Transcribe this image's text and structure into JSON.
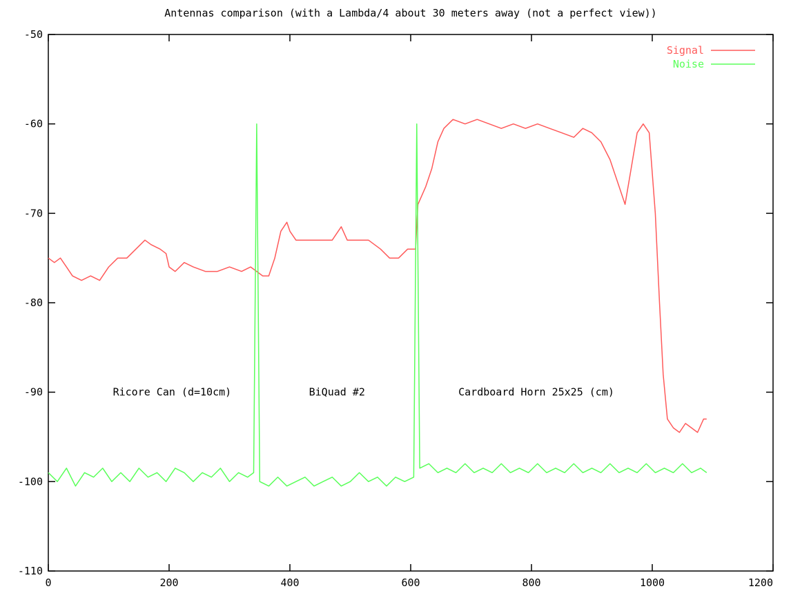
{
  "chart_data": {
    "type": "line",
    "title": "Antennas comparison (with a Lambda/4 about 30 meters away (not a perfect view))",
    "xlabel": "",
    "ylabel": "",
    "xlim": [
      0,
      1200
    ],
    "ylim": [
      -110,
      -50
    ],
    "x_ticks": [
      0,
      200,
      400,
      600,
      800,
      1000,
      1200
    ],
    "y_ticks": [
      -50,
      -60,
      -70,
      -80,
      -90,
      -100,
      -110
    ],
    "grid": false,
    "legend_position": "top-right",
    "colors": {
      "signal": "#ff5a5a",
      "noise": "#5aff5a",
      "axis": "#000000"
    },
    "annotations": [
      {
        "text": "Ricore Can (d=10cm)",
        "x": 205,
        "y": -90
      },
      {
        "text": "BiQuad #2",
        "x": 478,
        "y": -90
      },
      {
        "text": "Cardboard Horn 25x25 (cm)",
        "x": 808,
        "y": -90
      }
    ],
    "series": [
      {
        "name": "Signal",
        "color": "#ff5a5a",
        "points": [
          [
            0,
            -75
          ],
          [
            10,
            -75.5
          ],
          [
            20,
            -75
          ],
          [
            30,
            -76
          ],
          [
            40,
            -77
          ],
          [
            55,
            -77.5
          ],
          [
            70,
            -77
          ],
          [
            85,
            -77.5
          ],
          [
            100,
            -76
          ],
          [
            115,
            -75
          ],
          [
            130,
            -75
          ],
          [
            145,
            -74
          ],
          [
            160,
            -73
          ],
          [
            170,
            -73.5
          ],
          [
            185,
            -74
          ],
          [
            195,
            -74.5
          ],
          [
            200,
            -76
          ],
          [
            210,
            -76.5
          ],
          [
            225,
            -75.5
          ],
          [
            240,
            -76
          ],
          [
            260,
            -76.5
          ],
          [
            280,
            -76.5
          ],
          [
            300,
            -76
          ],
          [
            320,
            -76.5
          ],
          [
            335,
            -76
          ],
          [
            345,
            -76.5
          ],
          [
            355,
            -77
          ],
          [
            365,
            -77
          ],
          [
            375,
            -75
          ],
          [
            385,
            -72
          ],
          [
            395,
            -71
          ],
          [
            400,
            -72
          ],
          [
            410,
            -73
          ],
          [
            430,
            -73
          ],
          [
            450,
            -73
          ],
          [
            470,
            -73
          ],
          [
            485,
            -71.5
          ],
          [
            495,
            -73
          ],
          [
            510,
            -73
          ],
          [
            530,
            -73
          ],
          [
            550,
            -74
          ],
          [
            565,
            -75
          ],
          [
            580,
            -75
          ],
          [
            595,
            -74
          ],
          [
            608,
            -74
          ],
          [
            612,
            -69
          ],
          [
            625,
            -67
          ],
          [
            635,
            -65
          ],
          [
            645,
            -62
          ],
          [
            655,
            -60.5
          ],
          [
            670,
            -59.5
          ],
          [
            690,
            -60
          ],
          [
            710,
            -59.5
          ],
          [
            730,
            -60
          ],
          [
            750,
            -60.5
          ],
          [
            770,
            -60
          ],
          [
            790,
            -60.5
          ],
          [
            810,
            -60
          ],
          [
            830,
            -60.5
          ],
          [
            850,
            -61
          ],
          [
            870,
            -61.5
          ],
          [
            885,
            -60.5
          ],
          [
            900,
            -61
          ],
          [
            915,
            -62
          ],
          [
            930,
            -64
          ],
          [
            945,
            -67
          ],
          [
            955,
            -69
          ],
          [
            965,
            -65
          ],
          [
            975,
            -61
          ],
          [
            985,
            -60
          ],
          [
            995,
            -61
          ],
          [
            1005,
            -70
          ],
          [
            1012,
            -80
          ],
          [
            1018,
            -88
          ],
          [
            1025,
            -93
          ],
          [
            1035,
            -94
          ],
          [
            1045,
            -94.5
          ],
          [
            1055,
            -93.5
          ],
          [
            1065,
            -94
          ],
          [
            1075,
            -94.5
          ],
          [
            1085,
            -93
          ],
          [
            1090,
            -93
          ]
        ]
      },
      {
        "name": "Noise",
        "color": "#5aff5a",
        "points": [
          [
            0,
            -99
          ],
          [
            15,
            -100
          ],
          [
            30,
            -98.5
          ],
          [
            45,
            -100.5
          ],
          [
            60,
            -99
          ],
          [
            75,
            -99.5
          ],
          [
            90,
            -98.5
          ],
          [
            105,
            -100
          ],
          [
            120,
            -99
          ],
          [
            135,
            -100
          ],
          [
            150,
            -98.5
          ],
          [
            165,
            -99.5
          ],
          [
            180,
            -99
          ],
          [
            195,
            -100
          ],
          [
            210,
            -98.5
          ],
          [
            225,
            -99
          ],
          [
            240,
            -100
          ],
          [
            255,
            -99
          ],
          [
            270,
            -99.5
          ],
          [
            285,
            -98.5
          ],
          [
            300,
            -100
          ],
          [
            315,
            -99
          ],
          [
            330,
            -99.5
          ],
          [
            340,
            -99
          ],
          [
            345,
            -60
          ],
          [
            350,
            -100
          ],
          [
            365,
            -100.5
          ],
          [
            380,
            -99.5
          ],
          [
            395,
            -100.5
          ],
          [
            410,
            -100
          ],
          [
            425,
            -99.5
          ],
          [
            440,
            -100.5
          ],
          [
            455,
            -100
          ],
          [
            470,
            -99.5
          ],
          [
            485,
            -100.5
          ],
          [
            500,
            -100
          ],
          [
            515,
            -99
          ],
          [
            530,
            -100
          ],
          [
            545,
            -99.5
          ],
          [
            560,
            -100.5
          ],
          [
            575,
            -99.5
          ],
          [
            590,
            -100
          ],
          [
            605,
            -99.5
          ],
          [
            610,
            -60
          ],
          [
            615,
            -98.5
          ],
          [
            630,
            -98
          ],
          [
            645,
            -99
          ],
          [
            660,
            -98.5
          ],
          [
            675,
            -99
          ],
          [
            690,
            -98
          ],
          [
            705,
            -99
          ],
          [
            720,
            -98.5
          ],
          [
            735,
            -99
          ],
          [
            750,
            -98
          ],
          [
            765,
            -99
          ],
          [
            780,
            -98.5
          ],
          [
            795,
            -99
          ],
          [
            810,
            -98
          ],
          [
            825,
            -99
          ],
          [
            840,
            -98.5
          ],
          [
            855,
            -99
          ],
          [
            870,
            -98
          ],
          [
            885,
            -99
          ],
          [
            900,
            -98.5
          ],
          [
            915,
            -99
          ],
          [
            930,
            -98
          ],
          [
            945,
            -99
          ],
          [
            960,
            -98.5
          ],
          [
            975,
            -99
          ],
          [
            990,
            -98
          ],
          [
            1005,
            -99
          ],
          [
            1020,
            -98.5
          ],
          [
            1035,
            -99
          ],
          [
            1050,
            -98
          ],
          [
            1065,
            -99
          ],
          [
            1080,
            -98.5
          ],
          [
            1090,
            -99
          ]
        ]
      }
    ]
  }
}
